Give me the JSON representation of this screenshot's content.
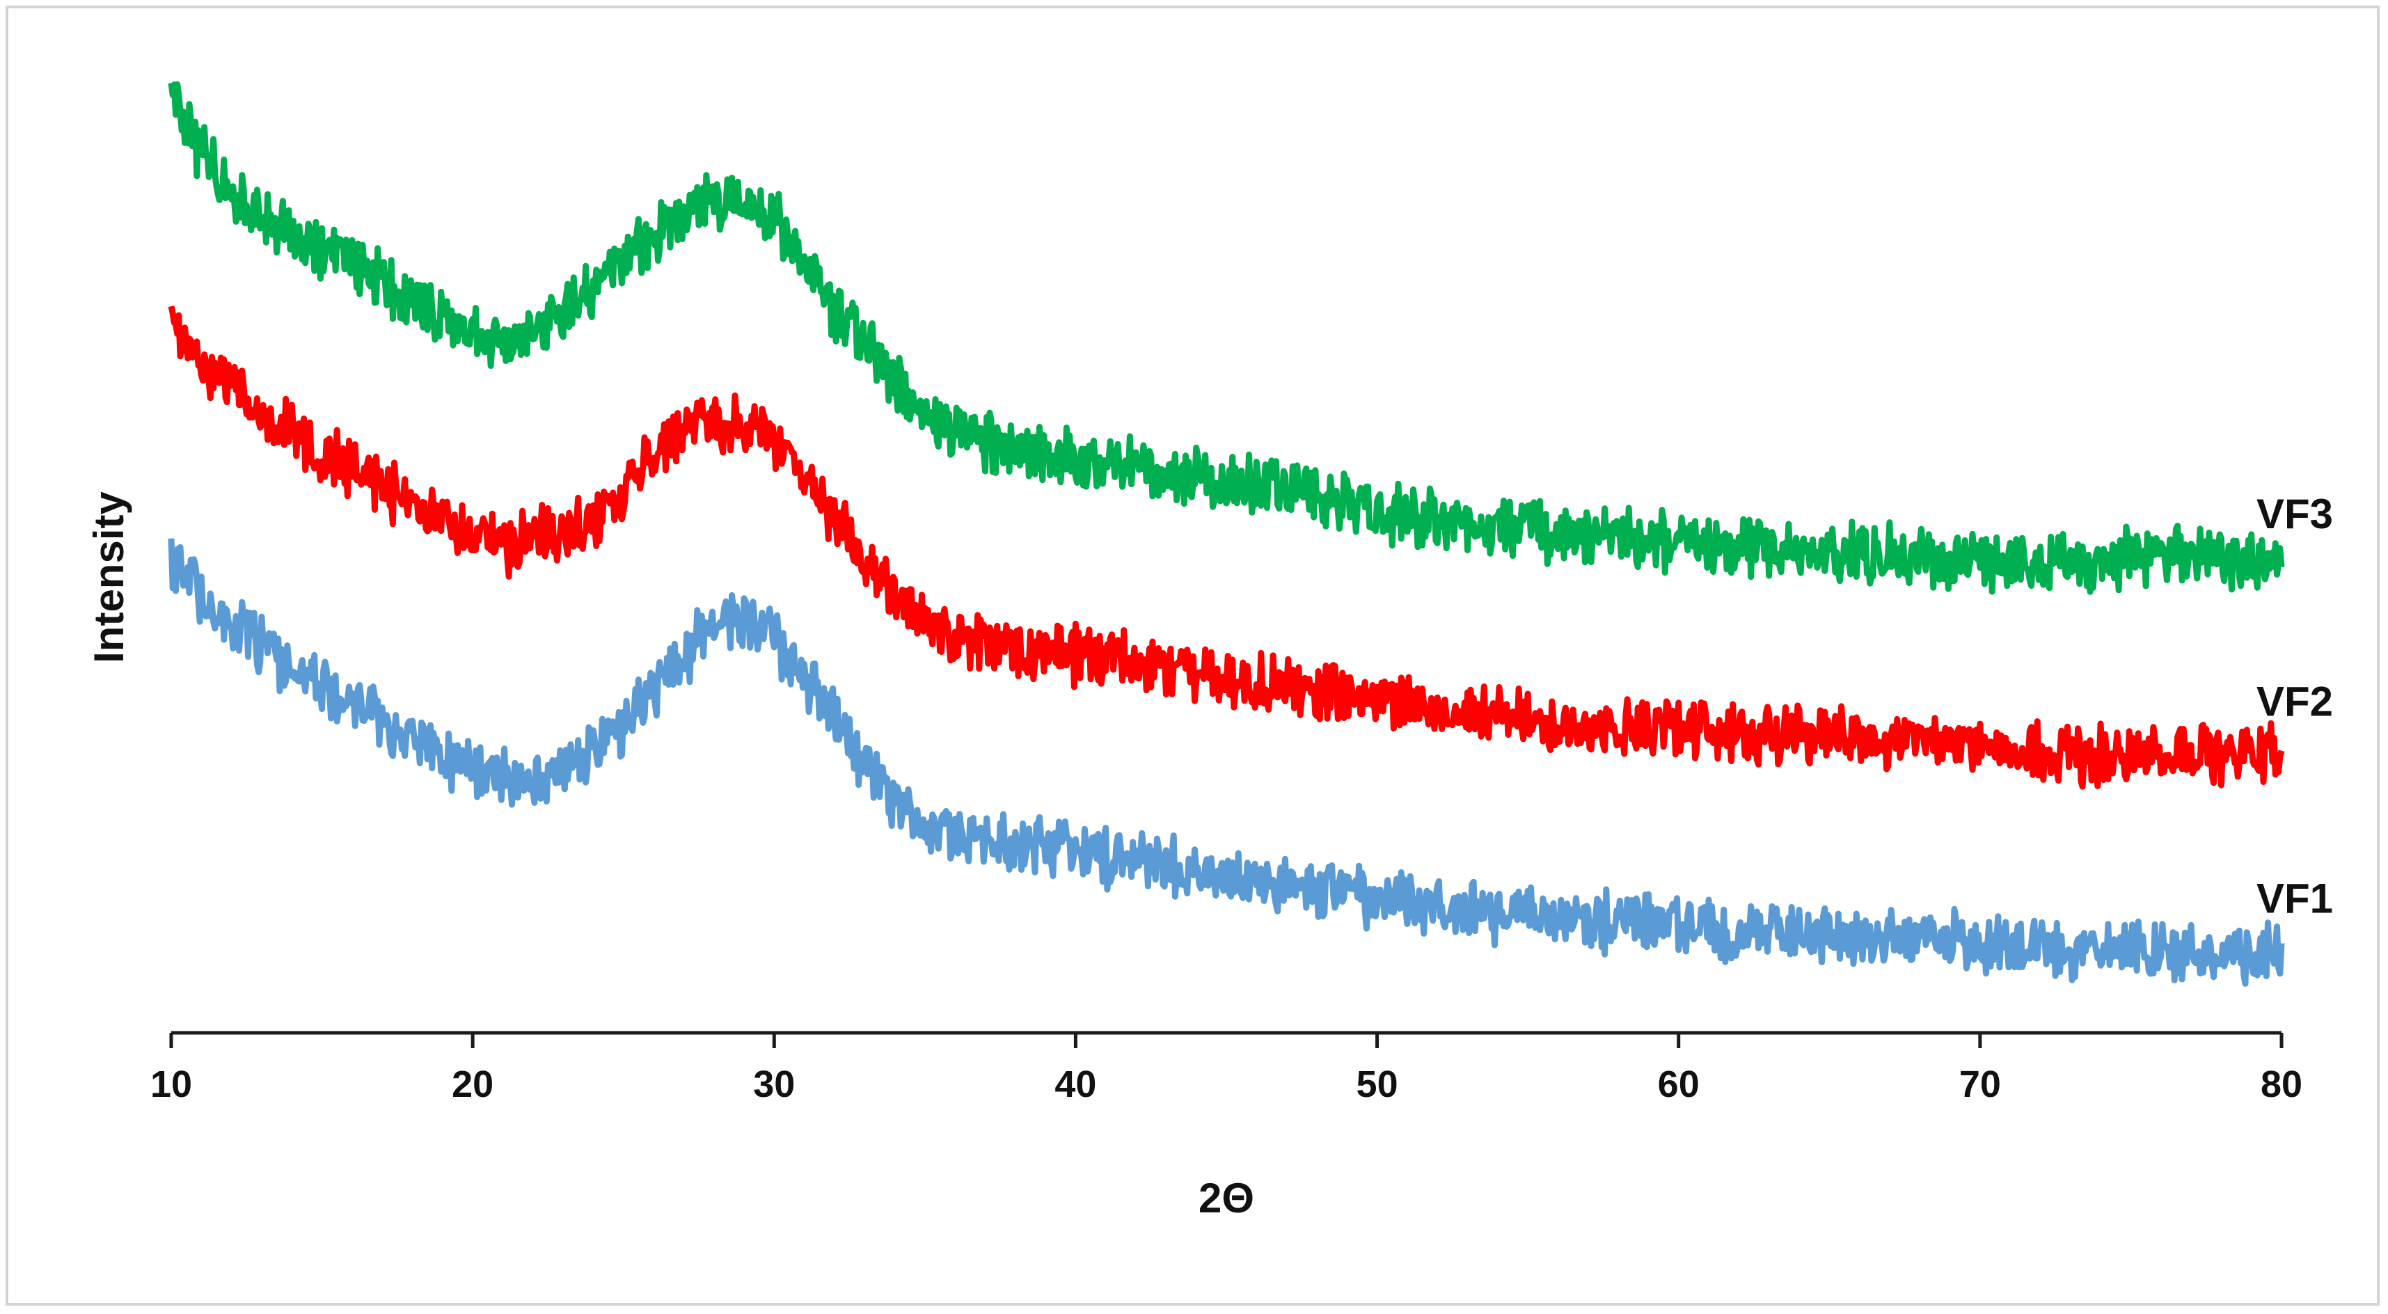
{
  "chart_data": {
    "type": "line",
    "title": "",
    "xlabel": "2Θ",
    "ylabel": "Intensity",
    "xlim": [
      10,
      80
    ],
    "x_ticks": [
      "10",
      "20",
      "30",
      "40",
      "50",
      "60",
      "70",
      "80"
    ],
    "y_ticks_shown": false,
    "y_axis_line": false,
    "x_axis_line": true,
    "grid": false,
    "legend": "none (series labelled at right end of each trace)",
    "note_values": "Intensity in relative units of the plot height; traces are vertically stacked and the y axis has no printed scale.",
    "series": [
      {
        "name": "VF3",
        "color": "#00b050",
        "x": [
          10,
          10.5,
          11,
          12,
          13,
          14,
          15,
          16,
          17,
          18,
          19,
          20,
          21,
          22,
          23,
          24,
          25,
          26,
          27,
          28,
          29,
          30,
          31,
          32,
          33,
          34,
          35,
          36,
          38,
          40,
          42,
          44,
          46,
          48,
          50,
          52,
          55,
          58,
          60,
          62,
          65,
          68,
          70,
          72,
          75,
          78,
          80
        ],
        "y": [
          98,
          94,
          91,
          87,
          84,
          82,
          80,
          79,
          77,
          75,
          73,
          71,
          70,
          71,
          73,
          76,
          79,
          82,
          85,
          86,
          86,
          84,
          79,
          74,
          70,
          66,
          62,
          60,
          58,
          57,
          56,
          55,
          54,
          53,
          51,
          50,
          49,
          48,
          48,
          47,
          47,
          46,
          46,
          45,
          46,
          46,
          45
        ]
      },
      {
        "name": "VF2",
        "color": "#ff0000",
        "x": [
          10,
          10.5,
          11,
          12,
          13,
          14,
          15,
          16,
          17,
          18,
          19,
          20,
          21,
          22,
          23,
          24,
          25,
          26,
          27,
          28,
          29,
          30,
          31,
          32,
          33,
          34,
          35,
          36,
          38,
          40,
          42,
          44,
          46,
          48,
          50,
          52,
          55,
          58,
          60,
          62,
          65,
          68,
          70,
          72,
          75,
          78,
          80
        ],
        "y": [
          72,
          70,
          68,
          65,
          62,
          60,
          58,
          56,
          54,
          52,
          50,
          48,
          47,
          48,
          49,
          50,
          53,
          57,
          60,
          61,
          61,
          59,
          55,
          50,
          46,
          42,
          39,
          37,
          36,
          35,
          34,
          33,
          32,
          31,
          30,
          29,
          28,
          27,
          27,
          26,
          26,
          25,
          25,
          24,
          24,
          24,
          24
        ]
      },
      {
        "name": "VF1",
        "color": "#5b9bd5",
        "x": [
          10,
          10.5,
          11,
          12,
          13,
          14,
          15,
          16,
          17,
          18,
          19,
          20,
          21,
          22,
          23,
          24,
          25,
          26,
          27,
          28,
          29,
          30,
          31,
          32,
          33,
          34,
          35,
          36,
          38,
          40,
          42,
          44,
          46,
          48,
          50,
          52,
          55,
          58,
          60,
          62,
          65,
          68,
          70,
          72,
          75,
          78,
          80
        ],
        "y": [
          45,
          44,
          42,
          39,
          36,
          34,
          32,
          30,
          28,
          26,
          24,
          22,
          21,
          21,
          22,
          24,
          27,
          31,
          35,
          38,
          39,
          37,
          33,
          28,
          23,
          19,
          16,
          15,
          14,
          13,
          12,
          11,
          10,
          9,
          8,
          7,
          6,
          5,
          5,
          4,
          4,
          3,
          3,
          2,
          2,
          2,
          2
        ]
      }
    ]
  }
}
